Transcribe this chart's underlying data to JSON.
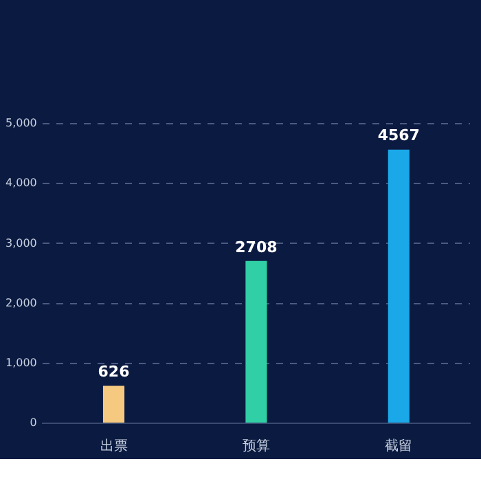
{
  "chart_data": {
    "type": "bar",
    "categories": [
      "出票",
      "预算",
      "截留"
    ],
    "values": [
      626,
      2708,
      4567
    ],
    "colors": [
      "#f5c97f",
      "#30cfa5",
      "#1aa8e8"
    ],
    "ylim": [
      0,
      5000
    ],
    "yticks": [
      {
        "value": 0,
        "label": "0"
      },
      {
        "value": 1000,
        "label": "1,000"
      },
      {
        "value": 2000,
        "label": "2,000"
      },
      {
        "value": 3000,
        "label": "3,000"
      },
      {
        "value": 4000,
        "label": "4,000"
      },
      {
        "value": 5000,
        "label": "5,000"
      }
    ],
    "grid": "y",
    "data_labels": true,
    "legend": false
  }
}
